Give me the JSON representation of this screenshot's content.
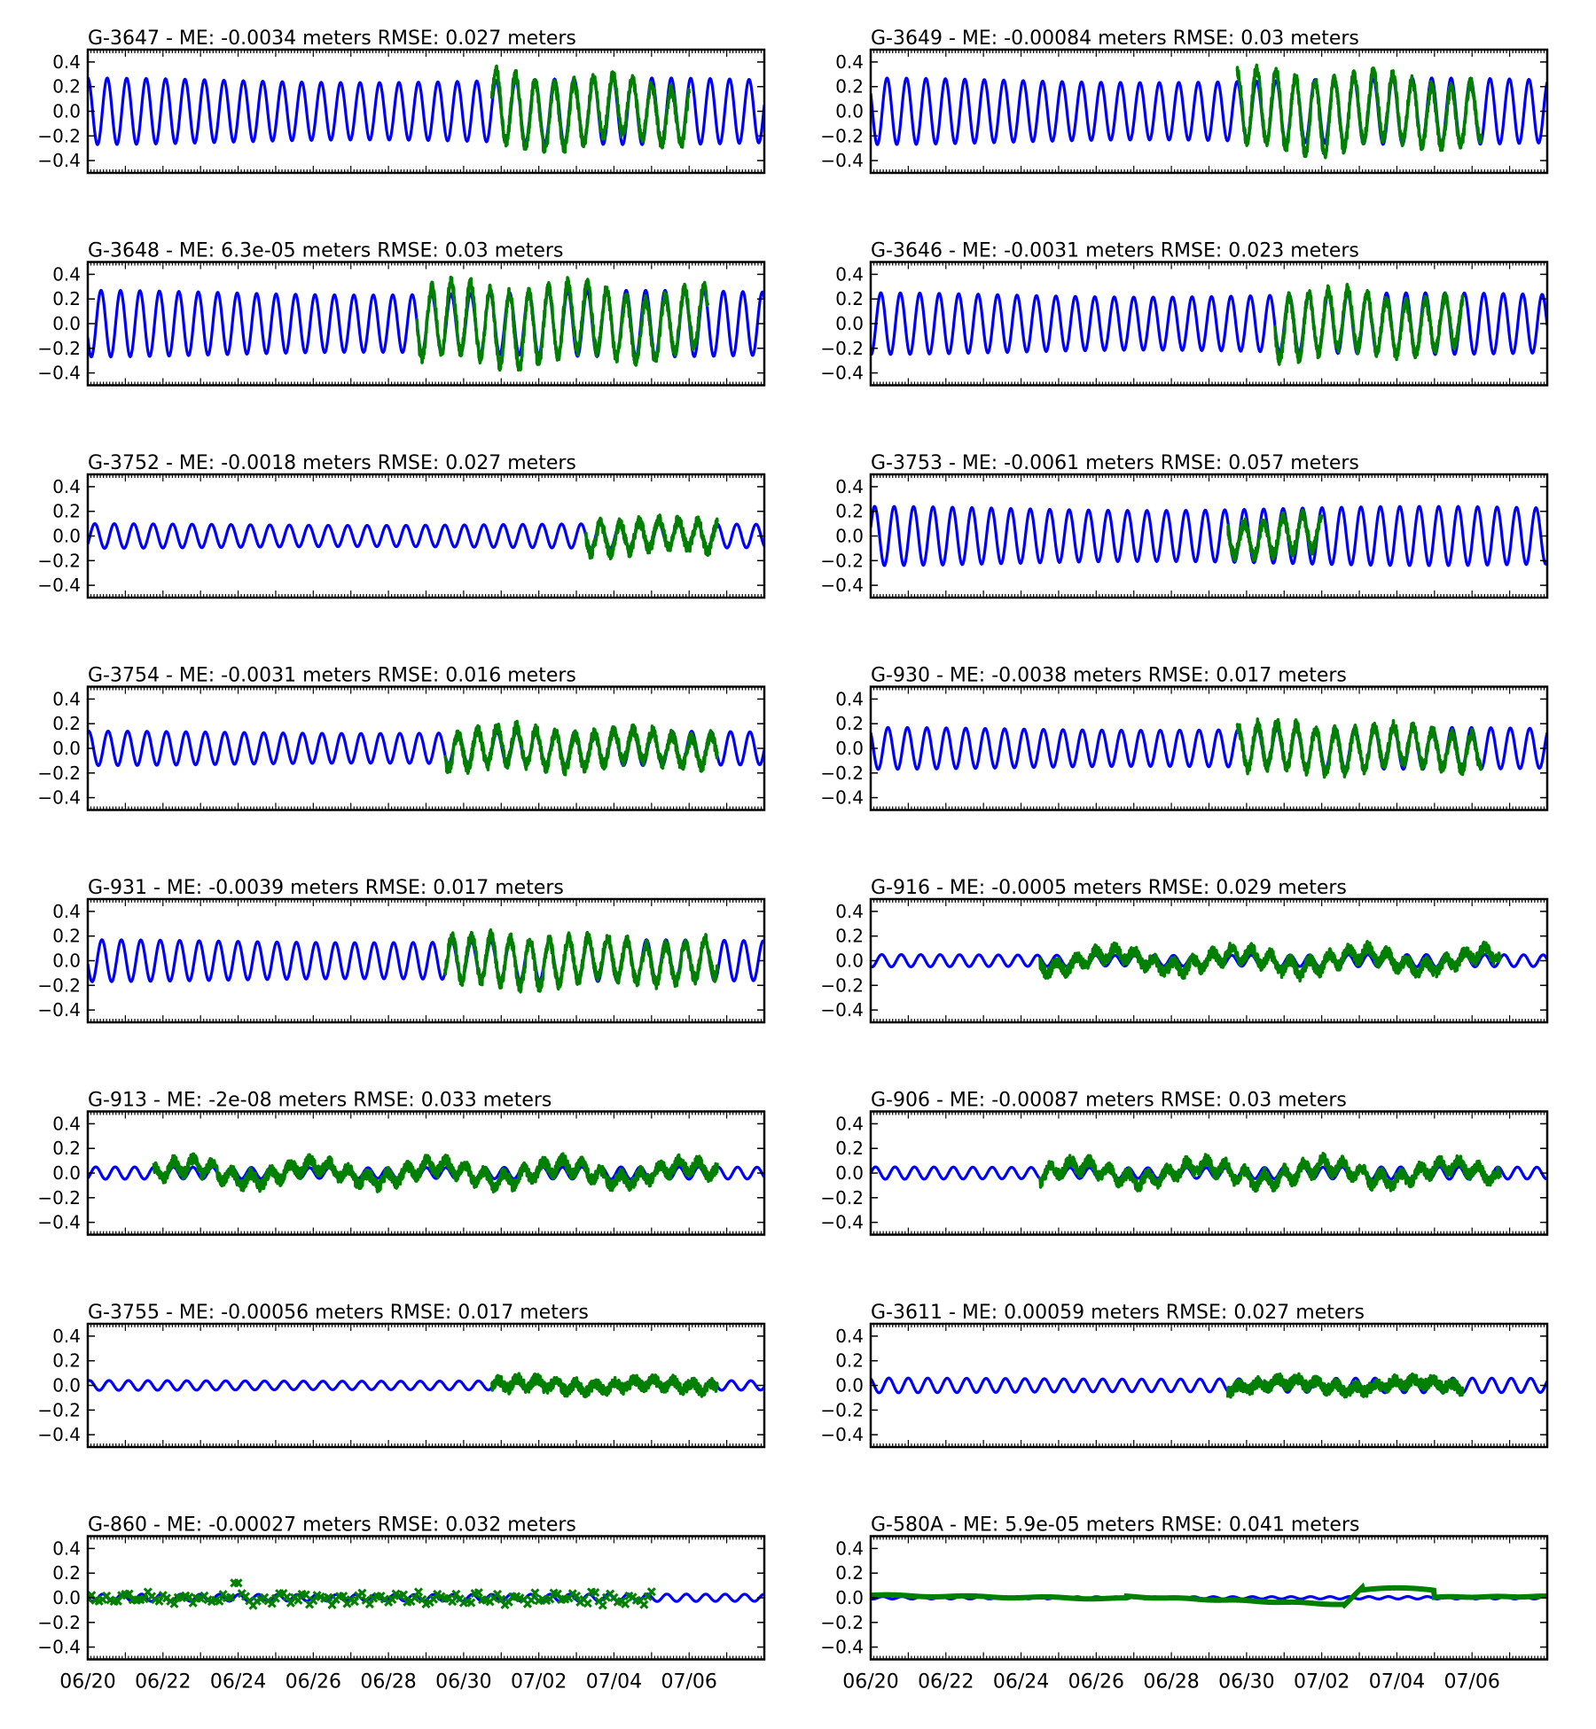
{
  "chart_data": {
    "type": "line",
    "layout": "8 rows x 2 columns of small multiples, shared x axis labels on bottom row",
    "ylim": [
      -0.5,
      0.5
    ],
    "yticks": [
      "0.4",
      "0.2",
      "0.0",
      "−0.2",
      "−0.4"
    ],
    "xlim": [
      "06/20",
      "07/08"
    ],
    "xticks": [
      "06/20",
      "06/22",
      "06/24",
      "06/26",
      "06/28",
      "06/30",
      "07/02",
      "07/04",
      "07/06"
    ],
    "grid": false,
    "colors": {
      "model": "#0000ff",
      "observed": "#008000"
    },
    "panels": [
      {
        "title": "G-3647 - ME: -0.0034 meters RMSE:   0.027 meters",
        "model_amp": 0.27,
        "obs_start": "06/30 18:00",
        "obs_end": "07/06 00:00",
        "obs_amp": 0.28,
        "obs_drift": 0.05,
        "obs_style": "band"
      },
      {
        "title": "G-3649 - ME: -0.00084 meters RMSE:    0.03 meters",
        "model_amp": 0.27,
        "obs_start": "06/29 18:00",
        "obs_end": "07/06 06:00",
        "obs_amp": 0.3,
        "obs_drift": 0.05,
        "obs_style": "band"
      },
      {
        "title": "G-3648 - ME: 6.3e-05 meters RMSE:    0.03 meters",
        "model_amp": 0.27,
        "obs_start": "06/28 18:00",
        "obs_end": "07/06 12:00",
        "obs_amp": 0.3,
        "obs_drift": 0.06,
        "obs_style": "band"
      },
      {
        "title": "G-3646 - ME: -0.0031 meters RMSE:   0.023 meters",
        "model_amp": 0.25,
        "obs_start": "06/30 18:00",
        "obs_end": "07/05 18:00",
        "obs_amp": 0.25,
        "obs_drift": 0.04,
        "obs_style": "band"
      },
      {
        "title": "G-3752 - ME: -0.0018 meters RMSE:   0.027 meters",
        "model_amp": 0.1,
        "obs_start": "07/03 06:00",
        "obs_end": "07/06 18:00",
        "obs_amp": 0.14,
        "obs_drift": 0.02,
        "obs_style": "band"
      },
      {
        "title": "G-3753 - ME: -0.0061 meters RMSE:   0.057 meters",
        "model_amp": 0.24,
        "obs_start": "06/29 12:00",
        "obs_end": "07/02 00:00",
        "obs_amp": 0.14,
        "obs_drift": 0.03,
        "obs_style": "band"
      },
      {
        "title": "G-3754 - ME: -0.0031 meters RMSE:   0.016 meters",
        "model_amp": 0.14,
        "obs_start": "06/29 12:00",
        "obs_end": "07/06 18:00",
        "obs_amp": 0.15,
        "obs_drift": 0.03,
        "obs_style": "band"
      },
      {
        "title": "G-930 - ME: -0.0038 meters RMSE:   0.017 meters",
        "model_amp": 0.17,
        "obs_start": "06/29 18:00",
        "obs_end": "07/06 06:00",
        "obs_amp": 0.18,
        "obs_drift": 0.03,
        "obs_style": "band"
      },
      {
        "title": "G-931 - ME: -0.0039 meters RMSE:   0.017 meters",
        "model_amp": 0.17,
        "obs_start": "06/29 12:00",
        "obs_end": "07/06 18:00",
        "obs_amp": 0.19,
        "obs_drift": 0.03,
        "obs_style": "band"
      },
      {
        "title": "G-916 - ME: -0.0005 meters RMSE:   0.029 meters",
        "model_amp": 0.05,
        "obs_start": "06/24 12:00",
        "obs_end": "07/06 18:00",
        "obs_amp": 0.06,
        "obs_drift": 0.06,
        "obs_style": "band"
      },
      {
        "title": "G-913 - ME:  -2e-08 meters RMSE:   0.033 meters",
        "model_amp": 0.05,
        "obs_start": "06/21 18:00",
        "obs_end": "07/06 18:00",
        "obs_amp": 0.06,
        "obs_drift": 0.06,
        "obs_style": "band"
      },
      {
        "title": "G-906 - ME: -0.00087 meters RMSE:    0.03 meters",
        "model_amp": 0.05,
        "obs_start": "06/24 12:00",
        "obs_end": "07/06 18:00",
        "obs_amp": 0.06,
        "obs_drift": 0.06,
        "obs_style": "band"
      },
      {
        "title": "G-3755 - ME: -0.00056 meters RMSE:   0.017 meters",
        "model_amp": 0.04,
        "obs_start": "06/30 18:00",
        "obs_end": "07/06 18:00",
        "obs_amp": 0.04,
        "obs_drift": 0.02,
        "obs_style": "band"
      },
      {
        "title": "G-3611 - ME: 0.00059 meters RMSE:   0.027 meters",
        "model_amp": 0.06,
        "obs_start": "06/29 12:00",
        "obs_end": "07/05 18:00",
        "obs_amp": 0.03,
        "obs_drift": 0.03,
        "obs_style": "band"
      },
      {
        "title": "G-860 - ME: -0.00027 meters RMSE:   0.032 meters",
        "model_amp": 0.03,
        "obs_start": "06/20 00:00",
        "obs_end": "07/05 00:00",
        "obs_amp": 0.03,
        "obs_drift": 0.03,
        "obs_style": "markers"
      },
      {
        "title": "G-580A - ME: 5.9e-05 meters RMSE:   0.041 meters",
        "model_amp": 0.01,
        "obs_start": "06/20 00:00",
        "obs_end": "07/08 00:00",
        "obs_amp": 0.0,
        "obs_drift": 0.0,
        "obs_style": "slow"
      }
    ]
  }
}
